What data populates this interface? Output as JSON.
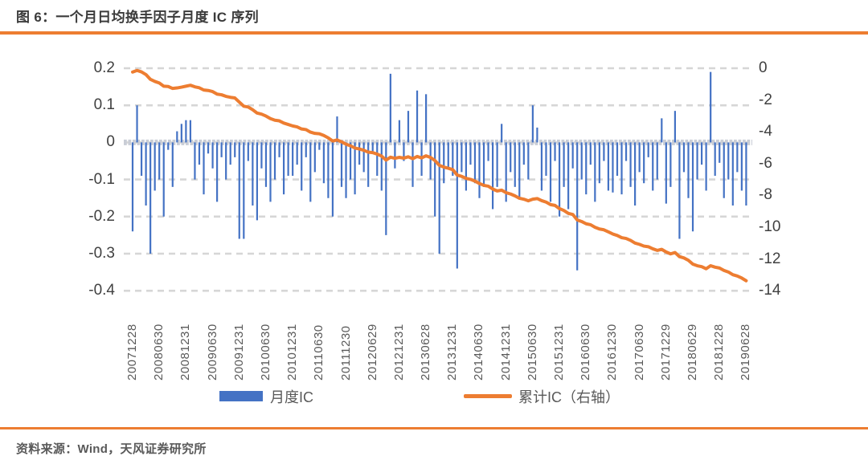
{
  "title": "图 6：一个月日均换手因子月度 IC 序列",
  "source_note": "资料来源：Wind，天风证券研究所",
  "accent_color": "#ED7D31",
  "chart_data": {
    "type": "bar",
    "subtype": "dual-axis bar + cumulative line",
    "title": "图 6：一个月日均换手因子月度 IC 序列",
    "xlabel": "",
    "ylabel": "",
    "x_frequency": "monthly",
    "x_start": "200712",
    "x_end": "201906",
    "x_tick_every": 6,
    "x_tick_labels": [
      "20071228",
      "20080630",
      "20081231",
      "20090630",
      "20091231",
      "20100630",
      "20101231",
      "20110630",
      "20111230",
      "20120629",
      "20121231",
      "20130628",
      "20131231",
      "20140630",
      "20141231",
      "20150630",
      "20151231",
      "20160630",
      "20161230",
      "20170630",
      "20171229",
      "20180629",
      "20181228",
      "20190628"
    ],
    "left_axis": {
      "min": -0.4,
      "max": 0.2,
      "tick_labels": [
        "0.2",
        "0.1",
        "0",
        "-0.1",
        "-0.2",
        "-0.3",
        "-0.4"
      ]
    },
    "right_axis": {
      "min": -14,
      "max": 0,
      "tick_labels": [
        "0",
        "-2",
        "-4",
        "-6",
        "-8",
        "-10",
        "-12",
        "-14"
      ]
    },
    "grid": "dashed horizontal gridlines",
    "legend_position": "bottom",
    "colors": {
      "bar": "#4472C4",
      "line": "#ED7D31",
      "gridline": "#D6D6D6",
      "zero_axis": "#C9CDD6"
    },
    "series": [
      {
        "name": "月度IC",
        "type": "bar",
        "axis": "left",
        "color": "#4472C4",
        "values": [
          -0.24,
          0.1,
          -0.09,
          -0.17,
          -0.3,
          -0.13,
          -0.1,
          -0.2,
          -0.02,
          -0.12,
          0.03,
          0.05,
          0.06,
          0.06,
          -0.1,
          -0.06,
          -0.14,
          -0.03,
          -0.07,
          -0.16,
          -0.04,
          -0.1,
          -0.06,
          -0.04,
          -0.26,
          -0.26,
          -0.05,
          -0.17,
          -0.21,
          -0.07,
          -0.12,
          -0.16,
          -0.1,
          -0.04,
          -0.14,
          -0.09,
          -0.09,
          -0.06,
          -0.13,
          -0.04,
          -0.16,
          -0.08,
          -0.02,
          -0.11,
          -0.15,
          -0.2,
          0.07,
          -0.12,
          -0.15,
          -0.1,
          -0.14,
          -0.06,
          -0.08,
          -0.12,
          -0.03,
          -0.09,
          -0.13,
          -0.25,
          0.185,
          -0.07,
          0.06,
          -0.05,
          0.085,
          -0.12,
          0.14,
          -0.09,
          0.13,
          -0.1,
          -0.2,
          -0.3,
          -0.11,
          -0.07,
          -0.09,
          -0.34,
          -0.08,
          -0.13,
          -0.06,
          -0.11,
          -0.15,
          -0.12,
          -0.05,
          -0.18,
          -0.12,
          0.05,
          -0.16,
          -0.08,
          -0.12,
          -0.15,
          -0.06,
          -0.1,
          0.1,
          0.04,
          -0.13,
          -0.09,
          -0.16,
          -0.05,
          -0.2,
          -0.12,
          -0.18,
          -0.07,
          -0.345,
          -0.1,
          -0.14,
          -0.06,
          -0.16,
          -0.11,
          -0.05,
          -0.13,
          -0.135,
          -0.09,
          -0.14,
          -0.05,
          -0.12,
          -0.17,
          -0.08,
          -0.11,
          -0.04,
          -0.13,
          -0.1,
          0.065,
          -0.165,
          -0.12,
          0.085,
          -0.26,
          -0.08,
          -0.15,
          -0.24,
          -0.1,
          -0.06,
          -0.13,
          0.19,
          -0.09,
          -0.055,
          -0.15,
          -0.1,
          -0.17,
          -0.08,
          -0.13,
          -0.17
        ]
      },
      {
        "name": "累计IC（右轴）",
        "type": "line",
        "axis": "right",
        "color": "#ED7D31",
        "derivation": "cumulative sum of 月度IC",
        "end_value": -13.3
      }
    ]
  }
}
